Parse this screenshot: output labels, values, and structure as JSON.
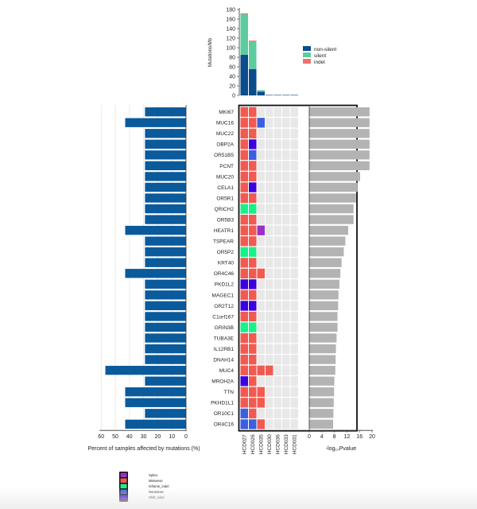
{
  "colors": {
    "pct_bar": "#0a5a9c",
    "pval_bar": "#b3b3b3",
    "cell_bg": "#e8e8e8",
    "non_silent": "#0a4c8c",
    "silent": "#5ccc9e",
    "indel": "#f07070",
    "Splice": "#9b30c8",
    "Missense": "#f15a50",
    "Inframe_indel": "#19f08a",
    "Nonsense": "#3c5fe0",
    "Shift_indel": "#3c00e0"
  },
  "chart_data": {
    "top": {
      "type": "bar",
      "ylabel": "Mutations/Mb",
      "yticks": [
        0,
        20,
        40,
        60,
        80,
        100,
        120,
        140,
        160,
        180
      ],
      "ylim": [
        0,
        180
      ],
      "samples": [
        "HCD027",
        "HCD026",
        "HCD035",
        "HCD030",
        "HCD036",
        "HCD033",
        "HCD031"
      ],
      "series": [
        {
          "name": "non-silent",
          "values": [
            85,
            55,
            8,
            1,
            1,
            1,
            1
          ]
        },
        {
          "name": "silent",
          "values": [
            85,
            58,
            3,
            0,
            0,
            0,
            0
          ]
        },
        {
          "name": "indel",
          "values": [
            2,
            2,
            0,
            0,
            0,
            0,
            0
          ]
        }
      ]
    },
    "genes": [
      "MKI67",
      "MUC16",
      "MUC22",
      "OBP2A",
      "OR51B5",
      "PCNT",
      "MUC20",
      "CELA1",
      "OR5R1",
      "QRICH2",
      "OR5B3",
      "HEATR1",
      "TSPEAR",
      "OR5P2",
      "KRT40",
      "OR4C46",
      "PKD1L2",
      "MAGEC1",
      "OR2T12",
      "C1orf167",
      "GRIN3B",
      "TUBA3E",
      "IL12RB1",
      "DNAH14",
      "MUC4",
      "MROH2A",
      "TTN",
      "PKHD1L1",
      "OR10C1",
      "OR4C16"
    ],
    "percent": {
      "type": "bar",
      "xlabel": "Percent of samples affected by mutations (%)",
      "xticks": [
        60,
        50,
        40,
        30,
        20,
        10,
        0
      ],
      "values": [
        29,
        43,
        29,
        29,
        29,
        29,
        29,
        29,
        29,
        29,
        29,
        43,
        29,
        29,
        29,
        43,
        29,
        29,
        29,
        29,
        29,
        29,
        29,
        29,
        57,
        29,
        43,
        43,
        29,
        43
      ]
    },
    "pvalue": {
      "type": "bar",
      "xlabel": "-log₁₀Pvalue",
      "xticks": [
        0,
        4,
        8,
        12,
        16,
        20
      ],
      "values": [
        19.2,
        19.2,
        19.2,
        19.2,
        19.2,
        19.2,
        16.2,
        15.4,
        14.9,
        14.1,
        14.1,
        12.4,
        11.5,
        11.0,
        10.3,
        9.9,
        9.6,
        9.3,
        9.2,
        9.0,
        9.0,
        8.7,
        8.5,
        8.4,
        8.3,
        8.0,
        7.9,
        7.8,
        7.7,
        7.6
      ]
    },
    "matrix": [
      [
        "Missense",
        "Missense",
        null,
        null,
        null,
        null,
        null
      ],
      [
        "Missense",
        "Missense",
        "Nonsense",
        null,
        null,
        null,
        null
      ],
      [
        "Missense",
        "Missense",
        null,
        null,
        null,
        null,
        null
      ],
      [
        "Missense",
        "Shift_indel",
        null,
        null,
        null,
        null,
        null
      ],
      [
        "Missense",
        "Nonsense",
        null,
        null,
        null,
        null,
        null
      ],
      [
        "Missense",
        "Missense",
        null,
        null,
        null,
        null,
        null
      ],
      [
        "Missense",
        "Missense",
        null,
        null,
        null,
        null,
        null
      ],
      [
        "Missense",
        "Shift_indel",
        null,
        null,
        null,
        null,
        null
      ],
      [
        "Missense",
        "Missense",
        null,
        null,
        null,
        null,
        null
      ],
      [
        "Inframe_indel",
        "Inframe_indel",
        null,
        null,
        null,
        null,
        null
      ],
      [
        "Missense",
        "Missense",
        null,
        null,
        null,
        null,
        null
      ],
      [
        "Missense",
        "Missense",
        "Splice",
        null,
        null,
        null,
        null
      ],
      [
        "Missense",
        "Missense",
        null,
        null,
        null,
        null,
        null
      ],
      [
        "Inframe_indel",
        "Inframe_indel",
        null,
        null,
        null,
        null,
        null
      ],
      [
        "Missense",
        "Missense",
        null,
        null,
        null,
        null,
        null
      ],
      [
        "Missense",
        "Missense",
        "Missense",
        null,
        null,
        null,
        null
      ],
      [
        "Shift_indel",
        "Shift_indel",
        null,
        null,
        null,
        null,
        null
      ],
      [
        "Missense",
        "Missense",
        null,
        null,
        null,
        null,
        null
      ],
      [
        "Shift_indel",
        "Shift_indel",
        null,
        null,
        null,
        null,
        null
      ],
      [
        "Missense",
        "Missense",
        null,
        null,
        null,
        null,
        null
      ],
      [
        "Inframe_indel",
        "Inframe_indel",
        null,
        null,
        null,
        null,
        null
      ],
      [
        "Missense",
        "Missense",
        null,
        null,
        null,
        null,
        null
      ],
      [
        "Missense",
        "Missense",
        null,
        null,
        null,
        null,
        null
      ],
      [
        "Missense",
        "Missense",
        null,
        null,
        null,
        null,
        null
      ],
      [
        "Missense",
        "Missense",
        "Missense",
        "Missense",
        null,
        null,
        null
      ],
      [
        "Shift_indel",
        "Missense",
        null,
        null,
        null,
        null,
        null
      ],
      [
        "Missense",
        "Missense",
        "Missense",
        null,
        null,
        null,
        null
      ],
      [
        "Missense",
        "Missense",
        "Missense",
        null,
        null,
        null,
        null
      ],
      [
        "Nonsense",
        "Missense",
        null,
        null,
        null,
        null,
        null
      ],
      [
        "Nonsense",
        "Nonsense",
        "Missense",
        null,
        null,
        null,
        null
      ]
    ],
    "legend_top": [
      "non-silent",
      "silent",
      "indel"
    ],
    "legend_bottom": [
      "Splice",
      "Missense",
      "Inframe_indel",
      "Nonsense",
      "Shift_indel"
    ]
  }
}
